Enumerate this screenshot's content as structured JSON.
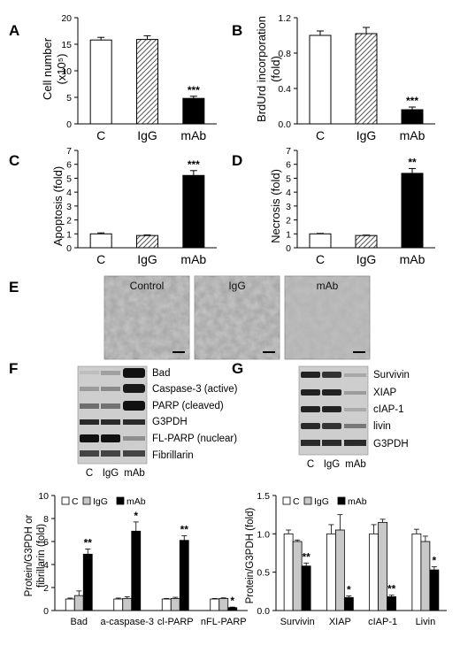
{
  "colors": {
    "open": "#ffffff",
    "hatch": "#8a8a8a",
    "solid": "#000000",
    "lightgray": "#c8c8c8"
  },
  "panels": {
    "A": {
      "letter": "A",
      "ylabel_line1": "Cell number",
      "ylabel_line2": "(x10⁵)"
    },
    "B": {
      "letter": "B",
      "ylabel": "BrdUrd incorporation",
      "ylabel_sub": "(fold)"
    },
    "C": {
      "letter": "C",
      "ylabel": "Apoptosis (fold)"
    },
    "D": {
      "letter": "D",
      "ylabel": "Necrosis (fold)"
    },
    "E": {
      "letter": "E",
      "images": [
        "Control",
        "IgG",
        "mAb"
      ]
    },
    "F": {
      "letter": "F",
      "blot_labels": [
        "Bad",
        "Caspase-3 (active)",
        "PARP (cleaved)",
        "G3PDH",
        "FL-PARP (nuclear)",
        "Fibrillarin"
      ],
      "lanes": [
        "C",
        "IgG",
        "mAb"
      ],
      "ylabel_line1": "Protein/G3PDH or",
      "ylabel_line2": "fibrillarin (fold)"
    },
    "G": {
      "letter": "G",
      "blot_labels": [
        "Survivin",
        "XIAP",
        "cIAP-1",
        "livin",
        "G3PDH"
      ],
      "lanes": [
        "C",
        "IgG",
        "mAb"
      ],
      "ylabel": "Protein/G3PDH (fold)"
    }
  },
  "chart_data": [
    {
      "panel": "A",
      "type": "bar",
      "categories": [
        "C",
        "IgG",
        "mAb"
      ],
      "values": [
        15.8,
        15.9,
        4.8
      ],
      "errors": [
        0.5,
        0.7,
        0.4
      ],
      "ylim": [
        0,
        20
      ],
      "yticks": [
        0,
        5,
        10,
        15,
        20
      ],
      "styles": [
        "open",
        "hatch",
        "solid"
      ],
      "annotations": [
        "",
        "",
        "***"
      ],
      "xlabel": "",
      "ylabel": "Cell number (x10⁵)"
    },
    {
      "panel": "B",
      "type": "bar",
      "categories": [
        "C",
        "IgG",
        "mAb"
      ],
      "values": [
        1.0,
        1.02,
        0.16
      ],
      "errors": [
        0.05,
        0.07,
        0.03
      ],
      "ylim": [
        0,
        1.2
      ],
      "yticks": [
        0,
        0.4,
        0.8,
        1.2
      ],
      "ytick_labels": [
        "0.0",
        "0.4",
        "0.8",
        "1.2"
      ],
      "styles": [
        "open",
        "hatch",
        "solid"
      ],
      "annotations": [
        "",
        "",
        "***"
      ],
      "xlabel": "",
      "ylabel": "BrdUrd incorporation (fold)"
    },
    {
      "panel": "C",
      "type": "bar",
      "categories": [
        "C",
        "IgG",
        "mAb"
      ],
      "values": [
        1.0,
        0.88,
        5.2
      ],
      "errors": [
        0.07,
        0.04,
        0.35
      ],
      "ylim": [
        0,
        7
      ],
      "yticks": [
        0,
        1,
        2,
        3,
        4,
        5,
        6,
        7
      ],
      "styles": [
        "open",
        "hatch",
        "solid"
      ],
      "annotations": [
        "",
        "",
        "***"
      ],
      "xlabel": "",
      "ylabel": "Apoptosis (fold)"
    },
    {
      "panel": "D",
      "type": "bar",
      "categories": [
        "C",
        "IgG",
        "mAb"
      ],
      "values": [
        1.0,
        0.88,
        5.35
      ],
      "errors": [
        0.03,
        0.03,
        0.35
      ],
      "ylim": [
        0,
        7
      ],
      "yticks": [
        0,
        1,
        2,
        3,
        4,
        5,
        6,
        7
      ],
      "styles": [
        "open",
        "hatch",
        "solid"
      ],
      "annotations": [
        "",
        "",
        "**"
      ],
      "xlabel": "",
      "ylabel": "Necrosis (fold)"
    },
    {
      "panel": "F",
      "type": "bar",
      "categories": [
        "Bad",
        "a-caspase-3",
        "cl-PARP",
        "nFL-PARP"
      ],
      "legend": {
        "placement": "top-left",
        "entries": [
          "C",
          "IgG",
          "mAb"
        ]
      },
      "series": [
        {
          "name": "C",
          "style": "open",
          "values": [
            1.0,
            1.0,
            1.0,
            1.0
          ],
          "errors": [
            0.08,
            0.08,
            0.05,
            0.05
          ]
        },
        {
          "name": "IgG",
          "style": "lightgray",
          "values": [
            1.3,
            1.05,
            1.05,
            1.05
          ],
          "errors": [
            0.4,
            0.15,
            0.1,
            0.05
          ]
        },
        {
          "name": "mAb",
          "style": "solid",
          "values": [
            4.9,
            6.9,
            6.1,
            0.25
          ],
          "errors": [
            0.45,
            0.8,
            0.4,
            0.05
          ]
        }
      ],
      "annotations": [
        "**",
        "*",
        "**",
        "*"
      ],
      "ylim": [
        0,
        10
      ],
      "yticks": [
        0,
        2,
        4,
        6,
        8,
        10
      ],
      "xlabel": "",
      "ylabel": "Protein/G3PDH or fibrillarin (fold)"
    },
    {
      "panel": "G",
      "type": "bar",
      "categories": [
        "Survivin",
        "XIAP",
        "cIAP-1",
        "Livin"
      ],
      "legend": {
        "placement": "top-left",
        "entries": [
          "C",
          "IgG",
          "mAb"
        ]
      },
      "series": [
        {
          "name": "C",
          "style": "open",
          "values": [
            1.0,
            1.0,
            1.0,
            1.0
          ],
          "errors": [
            0.05,
            0.12,
            0.12,
            0.06
          ]
        },
        {
          "name": "IgG",
          "style": "lightgray",
          "values": [
            0.9,
            1.05,
            1.15,
            0.9
          ],
          "errors": [
            0.02,
            0.2,
            0.04,
            0.07
          ]
        },
        {
          "name": "mAb",
          "style": "solid",
          "values": [
            0.58,
            0.17,
            0.18,
            0.53
          ],
          "errors": [
            0.04,
            0.02,
            0.02,
            0.04
          ]
        }
      ],
      "annotations": [
        "**",
        "*",
        "**",
        "*"
      ],
      "ylim": [
        0,
        1.5
      ],
      "yticks": [
        0,
        0.5,
        1.0,
        1.5
      ],
      "ytick_labels": [
        "0.0",
        "0.5",
        "1.0",
        "1.5"
      ],
      "xlabel": "",
      "ylabel": "Protein/G3PDH (fold)"
    }
  ]
}
